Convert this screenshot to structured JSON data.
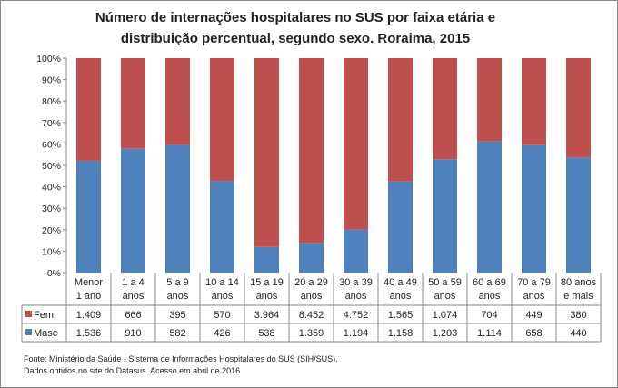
{
  "chart_data": {
    "type": "bar",
    "stacked": "percent",
    "title": [
      "Número de internações hospitalares no SUS por faixa etária e",
      "distribuição percentual, segundo sexo.  Roraima, 2015"
    ],
    "categories": [
      [
        "Menor",
        "1 ano"
      ],
      [
        "1 a 4",
        "anos"
      ],
      [
        "5 a 9",
        "anos"
      ],
      [
        "10 a 14",
        "anos"
      ],
      [
        "15 a 19",
        "anos"
      ],
      [
        "20 a 29",
        "anos"
      ],
      [
        "30 a 39",
        "anos"
      ],
      [
        "40 a 49",
        "anos"
      ],
      [
        "50 a 59",
        "anos"
      ],
      [
        "60 a 69",
        "anos"
      ],
      [
        "70 a 79",
        "anos"
      ],
      [
        "80 anos",
        "e mais"
      ]
    ],
    "series": [
      {
        "name": "Masc",
        "color": "#4f81bd",
        "values": [
          1536,
          910,
          582,
          426,
          538,
          1359,
          1194,
          1158,
          1203,
          1114,
          658,
          440
        ],
        "labels": [
          "1.536",
          "910",
          "582",
          "426",
          "538",
          "1.359",
          "1.194",
          "1.158",
          "1.203",
          "1.114",
          "658",
          "440"
        ]
      },
      {
        "name": "Fem",
        "color": "#c0504d",
        "values": [
          1409,
          666,
          395,
          570,
          3964,
          8452,
          4752,
          1565,
          1074,
          704,
          449,
          380
        ],
        "labels": [
          "1.409",
          "666",
          "395",
          "570",
          "3.964",
          "8.452",
          "4.752",
          "1.565",
          "1.074",
          "704",
          "449",
          "380"
        ]
      }
    ],
    "yticks": [
      "0%",
      "10%",
      "20%",
      "30%",
      "40%",
      "50%",
      "60%",
      "70%",
      "80%",
      "90%",
      "100%"
    ],
    "ylim": [
      0,
      100
    ],
    "grid": false,
    "legend": "data-table"
  },
  "source": [
    "Fonte: Ministério da Saúde - Sistema de Informações Hospitalares do SUS (SIH/SUS).",
    "Dados obtidos no site do Datasus. Acesso em abril de 2016"
  ]
}
